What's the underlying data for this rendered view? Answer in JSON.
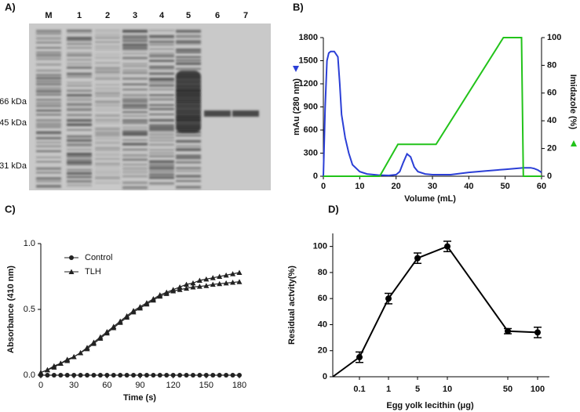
{
  "gel": {
    "panel_label": "A)",
    "lanes": [
      "M",
      "1",
      "2",
      "3",
      "4",
      "5",
      "6",
      "7"
    ],
    "markers": [
      "66 kDa",
      "45 kDa",
      "31 kDa"
    ]
  },
  "chart_data": [
    {
      "type": "line",
      "panel_label": "B)",
      "xlabel": "Volume (mL)",
      "ylabel": "mAu (280 nm)",
      "y2label": "Imidazole (%)",
      "xlim": [
        0,
        60
      ],
      "xticks": [
        0,
        10,
        20,
        30,
        40,
        50,
        60
      ],
      "ylim": [
        0,
        1800
      ],
      "yticks": [
        0,
        300,
        600,
        900,
        1200,
        1500,
        1800
      ],
      "y2lim": [
        0,
        100
      ],
      "y2ticks": [
        0,
        20,
        40,
        60,
        80,
        100
      ],
      "series": [
        {
          "color": "#2b3fd6",
          "x": [
            0,
            0.5,
            1,
            1.5,
            2,
            3,
            4,
            4.5,
            5,
            6,
            7,
            8,
            10,
            12,
            15,
            18,
            20,
            21,
            22,
            23,
            24,
            25,
            26,
            28,
            30,
            35,
            40,
            45,
            50,
            55,
            57,
            58,
            59,
            60
          ],
          "values": [
            0,
            900,
            1500,
            1600,
            1620,
            1620,
            1550,
            1200,
            800,
            500,
            300,
            150,
            60,
            30,
            15,
            10,
            20,
            60,
            180,
            290,
            250,
            120,
            60,
            30,
            20,
            20,
            50,
            70,
            90,
            110,
            110,
            100,
            80,
            50
          ]
        },
        {
          "color": "#22c31a",
          "axis": "y2",
          "x": [
            0,
            15.5,
            20.5,
            31,
            49.5,
            54.5,
            55,
            60
          ],
          "values": [
            0,
            0,
            23,
            23,
            100,
            100,
            0,
            0
          ]
        }
      ]
    },
    {
      "type": "line-markers",
      "panel_label": "C)",
      "xlabel": "Time (s)",
      "ylabel": "Absorbance (410 nm)",
      "xlim": [
        0,
        180
      ],
      "xticks": [
        0,
        30,
        60,
        90,
        120,
        150,
        180
      ],
      "ylim": [
        0,
        1.0
      ],
      "yticks": [
        {
          "value": 0,
          "label": "0.0"
        },
        {
          "value": 0.5,
          "label": "0.5"
        },
        {
          "value": 1.0,
          "label": "1.0"
        }
      ],
      "x": [
        0,
        6,
        12,
        18,
        24,
        30,
        36,
        42,
        48,
        54,
        60,
        66,
        72,
        78,
        84,
        90,
        96,
        102,
        108,
        114,
        120,
        126,
        132,
        138,
        144,
        150,
        156,
        162,
        168,
        174,
        180
      ],
      "series": [
        {
          "name": "Control",
          "marker": "circle",
          "color": "#222222",
          "values": [
            0,
            0,
            0,
            0,
            0,
            0,
            0,
            0,
            0,
            0,
            0,
            0,
            0,
            0,
            0,
            0,
            0,
            0,
            0,
            0,
            0,
            0,
            0,
            0,
            0,
            0,
            0,
            0,
            0,
            0,
            0
          ]
        },
        {
          "name": "TLH",
          "marker": "triangle",
          "color": "#222222",
          "values": [
            0.02,
            0.04,
            0.07,
            0.09,
            0.12,
            0.14,
            0.17,
            0.21,
            0.25,
            0.29,
            0.33,
            0.37,
            0.41,
            0.45,
            0.49,
            0.52,
            0.55,
            0.58,
            0.61,
            0.63,
            0.65,
            0.67,
            0.69,
            0.7,
            0.72,
            0.73,
            0.74,
            0.75,
            0.76,
            0.77,
            0.78
          ]
        },
        {
          "marker": "triangle",
          "color": "#222222",
          "values": [
            0.02,
            0.04,
            0.06,
            0.09,
            0.11,
            0.14,
            0.17,
            0.2,
            0.24,
            0.28,
            0.32,
            0.36,
            0.4,
            0.44,
            0.48,
            0.51,
            0.54,
            0.57,
            0.6,
            0.62,
            0.64,
            0.65,
            0.66,
            0.67,
            0.675,
            0.68,
            0.69,
            0.695,
            0.7,
            0.705,
            0.71
          ]
        }
      ]
    },
    {
      "type": "line-error",
      "panel_label": "D)",
      "xlabel": "Egg yolk lecithin (μg)",
      "ylabel": "Residual actvity(%)",
      "categories": [
        null,
        "0.1",
        "1",
        "5",
        "10",
        "50",
        "100"
      ],
      "values": [
        0,
        15,
        60,
        91,
        100,
        35,
        34
      ],
      "errors": [
        null,
        4,
        4,
        4,
        4,
        2,
        4
      ],
      "color": "#000000",
      "ylim": [
        0,
        110
      ],
      "yticks": [
        0,
        20,
        40,
        60,
        80,
        100
      ]
    }
  ]
}
